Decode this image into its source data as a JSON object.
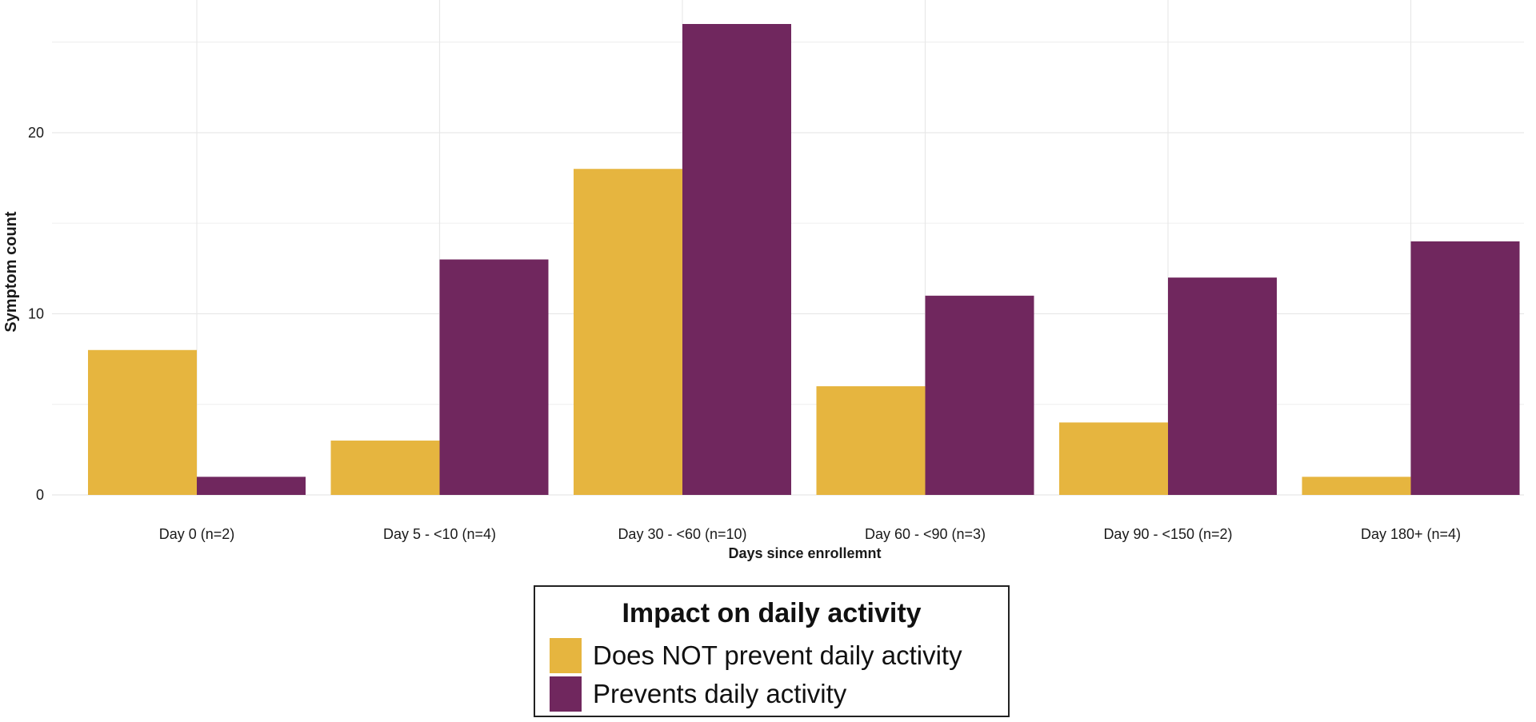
{
  "chart_data": {
    "type": "bar",
    "title": "",
    "xlabel": "Days since enrollemnt",
    "ylabel": "Symptom count",
    "ylim": [
      0,
      26
    ],
    "yticks": [
      0,
      10,
      20
    ],
    "grid": true,
    "categories": [
      "Day 0 (n=2)",
      "Day 5 - <10 (n=4)",
      "Day 30 - <60 (n=10)",
      "Day 60 - <90 (n=3)",
      "Day 90 - <150 (n=2)",
      "Day 180+ (n=4)"
    ],
    "series": [
      {
        "name": "Does NOT prevent daily activity",
        "color": "#E6B53F",
        "values": [
          8,
          3,
          18,
          6,
          4,
          1
        ]
      },
      {
        "name": "Prevents daily activity",
        "color": "#70275E",
        "values": [
          1,
          13,
          26,
          11,
          12,
          14
        ]
      }
    ],
    "legend": {
      "title": "Impact on daily activity",
      "position": "bottom"
    }
  }
}
